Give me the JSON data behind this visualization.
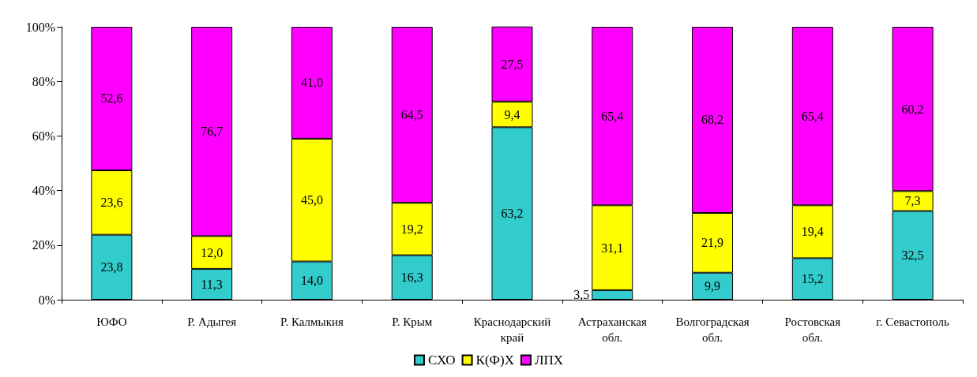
{
  "chart_data": {
    "type": "bar",
    "stacked": true,
    "categories": [
      "ЮФО",
      "Р. Адыгея",
      "Р. Калмыкия",
      "Р. Крым",
      "Краснодарский край",
      "Астраханская обл.",
      "Волгоградская обл.",
      "Ростовская обл.",
      "г. Севастополь"
    ],
    "series": [
      {
        "name": "СХО",
        "color": "#33cccc",
        "values": [
          23.8,
          11.3,
          14.0,
          16.3,
          63.2,
          3.5,
          9.9,
          15.2,
          32.5
        ],
        "value_labels": [
          "23,8",
          "11,3",
          "14,0",
          "16,3",
          "63,2",
          "3,5",
          "9,9",
          "15,2",
          "32,5"
        ]
      },
      {
        "name": "К(Ф)Х",
        "color": "#ffff00",
        "values": [
          23.6,
          12.0,
          45.0,
          19.2,
          9.4,
          31.1,
          21.9,
          19.4,
          7.3
        ],
        "value_labels": [
          "23,6",
          "12,0",
          "45,0",
          "19,2",
          "9,4",
          "31,1",
          "21,9",
          "19,4",
          "7,3"
        ]
      },
      {
        "name": "ЛПХ",
        "color": "#ff00ff",
        "values": [
          52.6,
          76.7,
          41.0,
          64.5,
          27.5,
          65.4,
          68.2,
          65.4,
          60.2
        ],
        "value_labels": [
          "52,6",
          "76,7",
          "41,0",
          "64,5",
          "27,5",
          "65,4",
          "68,2",
          "65,4",
          "60,2"
        ]
      }
    ],
    "ylim": [
      0,
      100
    ],
    "yticks": [
      {
        "value": 0,
        "label": "0%"
      },
      {
        "value": 20,
        "label": "20%"
      },
      {
        "value": 40,
        "label": "40%"
      },
      {
        "value": 60,
        "label": "60%"
      },
      {
        "value": 80,
        "label": "80%"
      },
      {
        "value": 100,
        "label": "100%"
      }
    ],
    "grid": false,
    "legend": "bottom"
  }
}
